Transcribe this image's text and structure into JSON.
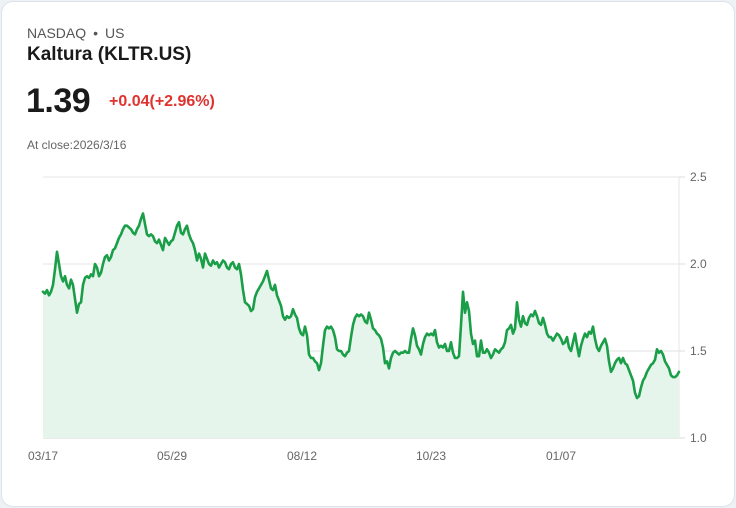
{
  "header": {
    "exchange": "NASDAQ",
    "separator": "•",
    "region": "US",
    "title": "Kaltura (KLTR.US)",
    "price": "1.39",
    "change": "+0.04(+2.96%)",
    "close_label": "At close:2026/3/16"
  },
  "colors": {
    "line": "#1a9e48",
    "fill": "#e6f5ec",
    "change_negative_or_positive": "#e0322f",
    "grid": "#e2e2e2"
  },
  "chart_data": {
    "type": "area",
    "title": "Kaltura (KLTR.US)",
    "xlabel": "",
    "ylabel": "",
    "ylim": [
      1.0,
      2.5
    ],
    "yticks": [
      "2.5",
      "2.0",
      "1.5",
      "1.0"
    ],
    "xticks": [
      "03/17",
      "05/29",
      "08/12",
      "10/23",
      "01/07"
    ],
    "grid": true,
    "legend": "none",
    "x_date_range": [
      "03/17",
      "03/16"
    ],
    "points": [
      [
        43,
        1.84
      ],
      [
        45,
        1.83
      ],
      [
        47,
        1.85
      ],
      [
        49,
        1.82
      ],
      [
        51,
        1.84
      ],
      [
        53,
        1.88
      ],
      [
        55,
        1.97
      ],
      [
        57,
        2.07
      ],
      [
        59,
        2.0
      ],
      [
        61,
        1.93
      ],
      [
        63,
        1.9
      ],
      [
        65,
        1.93
      ],
      [
        67,
        1.88
      ],
      [
        69,
        1.86
      ],
      [
        71,
        1.91
      ],
      [
        73,
        1.88
      ],
      [
        75,
        1.8
      ],
      [
        77,
        1.72
      ],
      [
        79,
        1.77
      ],
      [
        81,
        1.78
      ],
      [
        83,
        1.88
      ],
      [
        85,
        1.92
      ],
      [
        87,
        1.93
      ],
      [
        89,
        1.92
      ],
      [
        91,
        1.94
      ],
      [
        93,
        1.93
      ],
      [
        95,
        2.0
      ],
      [
        97,
        1.98
      ],
      [
        99,
        1.93
      ],
      [
        101,
        1.95
      ],
      [
        103,
        2.0
      ],
      [
        105,
        2.04
      ],
      [
        107,
        2.05
      ],
      [
        109,
        2.02
      ],
      [
        111,
        2.04
      ],
      [
        113,
        2.08
      ],
      [
        115,
        2.09
      ],
      [
        117,
        2.12
      ],
      [
        119,
        2.15
      ],
      [
        121,
        2.17
      ],
      [
        123,
        2.2
      ],
      [
        125,
        2.22
      ],
      [
        127,
        2.22
      ],
      [
        129,
        2.21
      ],
      [
        131,
        2.2
      ],
      [
        133,
        2.18
      ],
      [
        135,
        2.17
      ],
      [
        137,
        2.2
      ],
      [
        139,
        2.22
      ],
      [
        141,
        2.26
      ],
      [
        143,
        2.29
      ],
      [
        145,
        2.23
      ],
      [
        147,
        2.17
      ],
      [
        149,
        2.16
      ],
      [
        151,
        2.17
      ],
      [
        153,
        2.16
      ],
      [
        155,
        2.13
      ],
      [
        157,
        2.12
      ],
      [
        159,
        2.14
      ],
      [
        161,
        2.11
      ],
      [
        163,
        2.08
      ],
      [
        165,
        2.15
      ],
      [
        167,
        2.13
      ],
      [
        169,
        2.11
      ],
      [
        171,
        2.13
      ],
      [
        173,
        2.14
      ],
      [
        175,
        2.18
      ],
      [
        177,
        2.22
      ],
      [
        179,
        2.24
      ],
      [
        181,
        2.18
      ],
      [
        183,
        2.17
      ],
      [
        185,
        2.2
      ],
      [
        187,
        2.22
      ],
      [
        189,
        2.17
      ],
      [
        191,
        2.14
      ],
      [
        193,
        2.12
      ],
      [
        195,
        2.08
      ],
      [
        197,
        2.02
      ],
      [
        199,
        2.06
      ],
      [
        201,
        2.03
      ],
      [
        203,
        1.98
      ],
      [
        205,
        2.06
      ],
      [
        207,
        2.03
      ],
      [
        209,
        2.0
      ],
      [
        211,
        1.99
      ],
      [
        213,
        2.02
      ],
      [
        215,
        2.0
      ],
      [
        217,
        2.01
      ],
      [
        219,
        1.98
      ],
      [
        221,
        2.0
      ],
      [
        223,
        2.02
      ],
      [
        225,
        2.01
      ],
      [
        227,
        1.98
      ],
      [
        229,
        1.97
      ],
      [
        231,
        2.0
      ],
      [
        233,
        2.01
      ],
      [
        235,
        1.98
      ],
      [
        237,
        1.97
      ],
      [
        239,
        2.0
      ],
      [
        241,
        1.94
      ],
      [
        243,
        1.85
      ],
      [
        245,
        1.78
      ],
      [
        247,
        1.77
      ],
      [
        249,
        1.76
      ],
      [
        251,
        1.73
      ],
      [
        253,
        1.74
      ],
      [
        255,
        1.81
      ],
      [
        257,
        1.84
      ],
      [
        259,
        1.86
      ],
      [
        261,
        1.88
      ],
      [
        263,
        1.9
      ],
      [
        265,
        1.93
      ],
      [
        267,
        1.96
      ],
      [
        269,
        1.91
      ],
      [
        271,
        1.86
      ],
      [
        273,
        1.85
      ],
      [
        275,
        1.88
      ],
      [
        277,
        1.82
      ],
      [
        279,
        1.79
      ],
      [
        281,
        1.76
      ],
      [
        283,
        1.7
      ],
      [
        285,
        1.68
      ],
      [
        287,
        1.7
      ],
      [
        289,
        1.69
      ],
      [
        291,
        1.7
      ],
      [
        293,
        1.74
      ],
      [
        295,
        1.71
      ],
      [
        297,
        1.69
      ],
      [
        299,
        1.63
      ],
      [
        301,
        1.6
      ],
      [
        303,
        1.59
      ],
      [
        305,
        1.64
      ],
      [
        307,
        1.59
      ],
      [
        309,
        1.48
      ],
      [
        311,
        1.46
      ],
      [
        313,
        1.46
      ],
      [
        315,
        1.44
      ],
      [
        317,
        1.43
      ],
      [
        319,
        1.39
      ],
      [
        321,
        1.43
      ],
      [
        323,
        1.53
      ],
      [
        325,
        1.62
      ],
      [
        327,
        1.64
      ],
      [
        329,
        1.63
      ],
      [
        331,
        1.64
      ],
      [
        333,
        1.62
      ],
      [
        335,
        1.58
      ],
      [
        337,
        1.51
      ],
      [
        339,
        1.5
      ],
      [
        341,
        1.5
      ],
      [
        343,
        1.48
      ],
      [
        345,
        1.47
      ],
      [
        347,
        1.49
      ],
      [
        349,
        1.5
      ],
      [
        351,
        1.58
      ],
      [
        353,
        1.65
      ],
      [
        355,
        1.69
      ],
      [
        357,
        1.71
      ],
      [
        359,
        1.7
      ],
      [
        361,
        1.71
      ],
      [
        363,
        1.7
      ],
      [
        365,
        1.67
      ],
      [
        367,
        1.66
      ],
      [
        369,
        1.72
      ],
      [
        371,
        1.68
      ],
      [
        373,
        1.63
      ],
      [
        375,
        1.62
      ],
      [
        377,
        1.6
      ],
      [
        379,
        1.59
      ],
      [
        381,
        1.57
      ],
      [
        383,
        1.52
      ],
      [
        385,
        1.43
      ],
      [
        387,
        1.44
      ],
      [
        389,
        1.4
      ],
      [
        391,
        1.46
      ],
      [
        393,
        1.49
      ],
      [
        395,
        1.5
      ],
      [
        397,
        1.49
      ],
      [
        399,
        1.48
      ],
      [
        401,
        1.49
      ],
      [
        403,
        1.49
      ],
      [
        405,
        1.5
      ],
      [
        407,
        1.49
      ],
      [
        409,
        1.49
      ],
      [
        411,
        1.57
      ],
      [
        413,
        1.63
      ],
      [
        415,
        1.59
      ],
      [
        417,
        1.53
      ],
      [
        419,
        1.51
      ],
      [
        421,
        1.48
      ],
      [
        423,
        1.54
      ],
      [
        425,
        1.58
      ],
      [
        427,
        1.6
      ],
      [
        429,
        1.59
      ],
      [
        431,
        1.6
      ],
      [
        433,
        1.59
      ],
      [
        435,
        1.62
      ],
      [
        437,
        1.55
      ],
      [
        439,
        1.52
      ],
      [
        441,
        1.53
      ],
      [
        443,
        1.52
      ],
      [
        445,
        1.54
      ],
      [
        447,
        1.5
      ],
      [
        449,
        1.5
      ],
      [
        451,
        1.55
      ],
      [
        453,
        1.49
      ],
      [
        455,
        1.46
      ],
      [
        457,
        1.46
      ],
      [
        459,
        1.47
      ],
      [
        461,
        1.65
      ],
      [
        463,
        1.84
      ],
      [
        465,
        1.72
      ],
      [
        467,
        1.78
      ],
      [
        469,
        1.73
      ],
      [
        471,
        1.6
      ],
      [
        473,
        1.54
      ],
      [
        475,
        1.56
      ],
      [
        477,
        1.47
      ],
      [
        479,
        1.47
      ],
      [
        481,
        1.56
      ],
      [
        483,
        1.49
      ],
      [
        485,
        1.49
      ],
      [
        487,
        1.51
      ],
      [
        489,
        1.49
      ],
      [
        491,
        1.46
      ],
      [
        493,
        1.48
      ],
      [
        495,
        1.51
      ],
      [
        497,
        1.5
      ],
      [
        499,
        1.49
      ],
      [
        501,
        1.51
      ],
      [
        503,
        1.52
      ],
      [
        505,
        1.55
      ],
      [
        507,
        1.62
      ],
      [
        509,
        1.63
      ],
      [
        511,
        1.65
      ],
      [
        513,
        1.6
      ],
      [
        515,
        1.63
      ],
      [
        517,
        1.78
      ],
      [
        519,
        1.68
      ],
      [
        521,
        1.64
      ],
      [
        523,
        1.7
      ],
      [
        525,
        1.66
      ],
      [
        527,
        1.65
      ],
      [
        529,
        1.69
      ],
      [
        531,
        1.71
      ],
      [
        533,
        1.7
      ],
      [
        535,
        1.73
      ],
      [
        537,
        1.7
      ],
      [
        539,
        1.66
      ],
      [
        541,
        1.65
      ],
      [
        543,
        1.69
      ],
      [
        545,
        1.65
      ],
      [
        547,
        1.6
      ],
      [
        549,
        1.58
      ],
      [
        551,
        1.58
      ],
      [
        553,
        1.56
      ],
      [
        555,
        1.58
      ],
      [
        557,
        1.6
      ],
      [
        559,
        1.59
      ],
      [
        561,
        1.57
      ],
      [
        563,
        1.54
      ],
      [
        565,
        1.55
      ],
      [
        567,
        1.58
      ],
      [
        569,
        1.52
      ],
      [
        571,
        1.5
      ],
      [
        573,
        1.55
      ],
      [
        575,
        1.6
      ],
      [
        577,
        1.53
      ],
      [
        579,
        1.47
      ],
      [
        581,
        1.53
      ],
      [
        583,
        1.57
      ],
      [
        585,
        1.6
      ],
      [
        587,
        1.58
      ],
      [
        589,
        1.61
      ],
      [
        591,
        1.6
      ],
      [
        593,
        1.64
      ],
      [
        595,
        1.57
      ],
      [
        597,
        1.52
      ],
      [
        599,
        1.5
      ],
      [
        601,
        1.53
      ],
      [
        603,
        1.55
      ],
      [
        605,
        1.57
      ],
      [
        607,
        1.53
      ],
      [
        609,
        1.44
      ],
      [
        611,
        1.38
      ],
      [
        613,
        1.4
      ],
      [
        615,
        1.43
      ],
      [
        617,
        1.45
      ],
      [
        619,
        1.46
      ],
      [
        621,
        1.43
      ],
      [
        623,
        1.46
      ],
      [
        625,
        1.43
      ],
      [
        627,
        1.42
      ],
      [
        629,
        1.39
      ],
      [
        631,
        1.36
      ],
      [
        633,
        1.33
      ],
      [
        635,
        1.26
      ],
      [
        637,
        1.23
      ],
      [
        639,
        1.24
      ],
      [
        641,
        1.29
      ],
      [
        643,
        1.33
      ],
      [
        645,
        1.35
      ],
      [
        647,
        1.38
      ],
      [
        649,
        1.4
      ],
      [
        651,
        1.42
      ],
      [
        653,
        1.43
      ],
      [
        655,
        1.45
      ],
      [
        657,
        1.51
      ],
      [
        659,
        1.49
      ],
      [
        661,
        1.5
      ],
      [
        663,
        1.48
      ],
      [
        665,
        1.44
      ],
      [
        667,
        1.42
      ],
      [
        669,
        1.4
      ],
      [
        671,
        1.36
      ],
      [
        673,
        1.35
      ],
      [
        675,
        1.35
      ],
      [
        677,
        1.36
      ],
      [
        679,
        1.38
      ]
    ]
  }
}
